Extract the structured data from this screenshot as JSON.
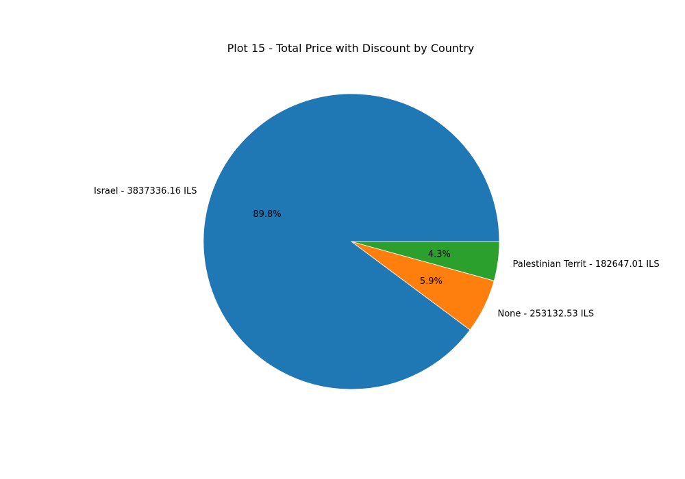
{
  "chart_data": {
    "type": "pie",
    "title": "Plot 15 - Total Price with Discount by Country",
    "slices": [
      {
        "label": "Israel - 3837336.16 ILS",
        "value": 3837336.16,
        "percent_label": "89.8%",
        "color": "#1f77b4"
      },
      {
        "label": "None - 253132.53 ILS",
        "value": 253132.53,
        "percent_label": "5.9%",
        "color": "#ff7f0e"
      },
      {
        "label": "Palestinian Territ - 182647.01 ILS",
        "value": 182647.01,
        "percent_label": "4.3%",
        "color": "#2ca02c"
      }
    ],
    "start_angle": 0,
    "direction": "counterclockwise",
    "legend": "none"
  }
}
